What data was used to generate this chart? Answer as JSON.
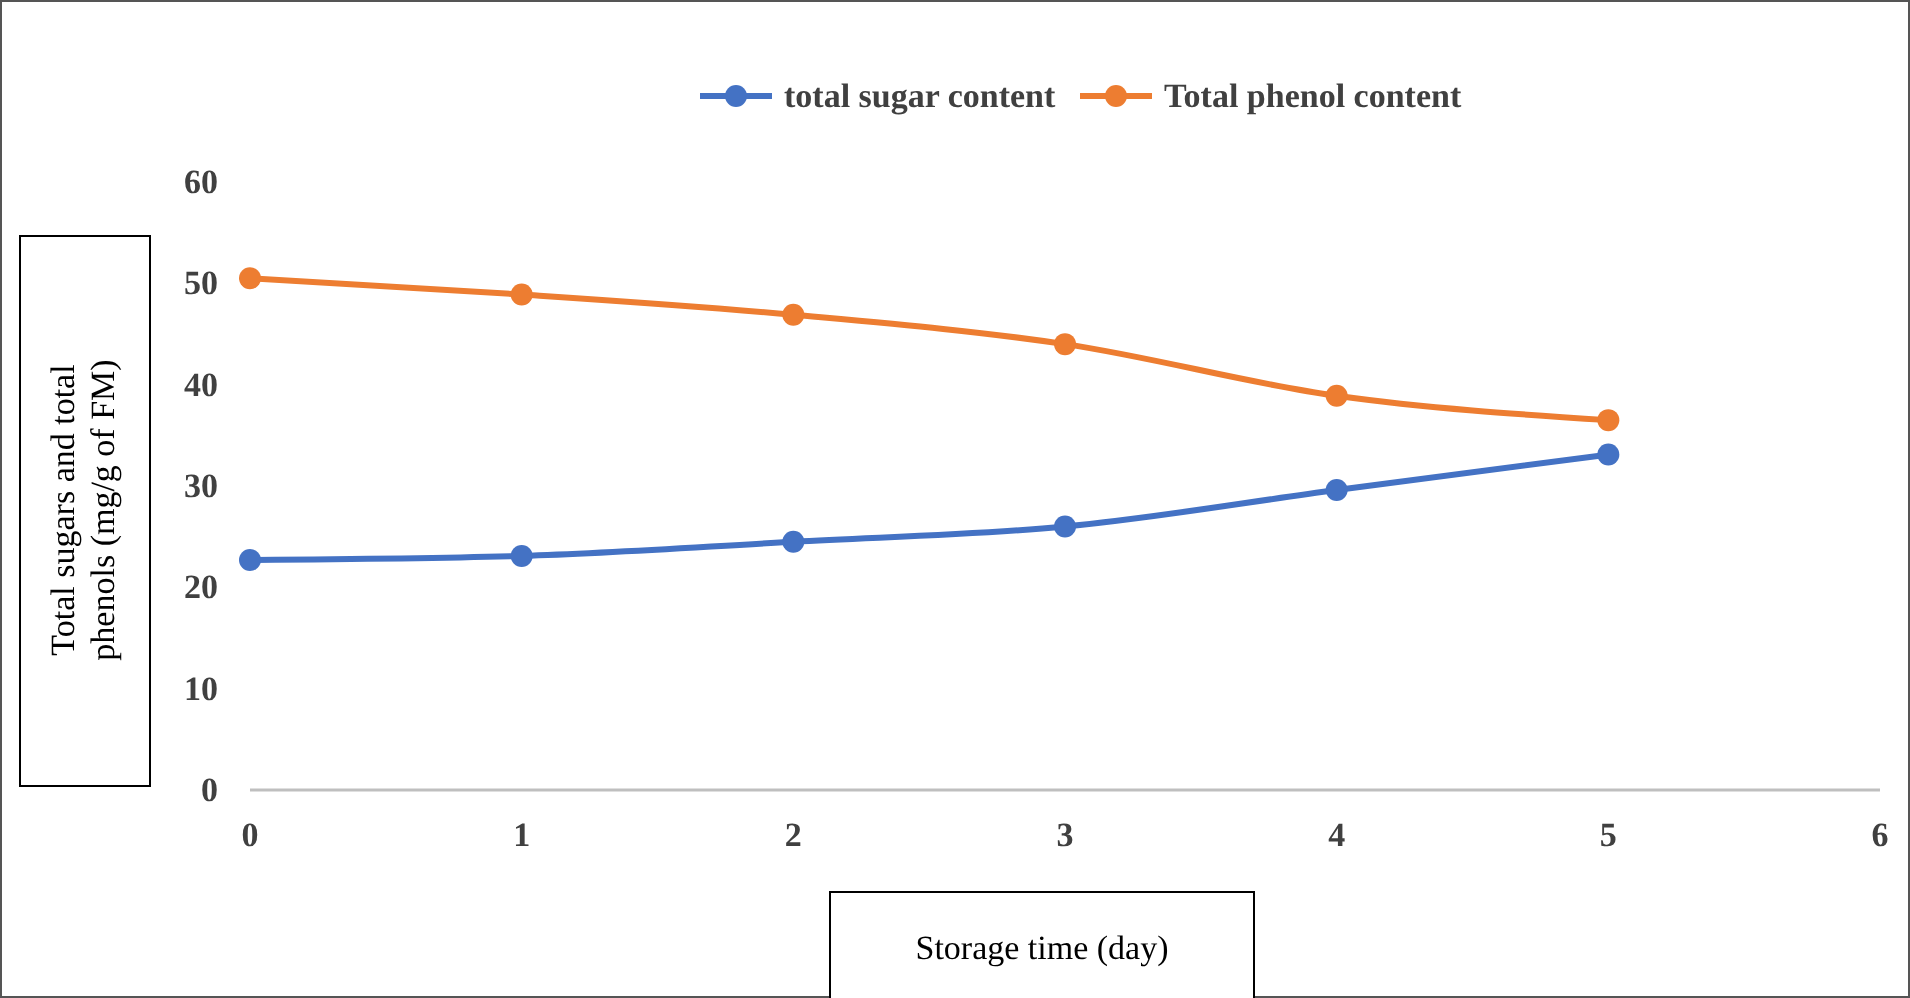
{
  "chart_data": {
    "type": "line",
    "xlabel": "Storage time (day)",
    "ylabel": "Total sugars and total phenols (mg/g of FM)",
    "x": [
      0,
      1,
      2,
      3,
      4,
      5
    ],
    "series": [
      {
        "name": "total sugar content",
        "color": "#4472c4",
        "values": [
          22.7,
          23.1,
          24.5,
          26.0,
          29.6,
          33.1
        ]
      },
      {
        "name": "Total phenol content",
        "color": "#ed7d31",
        "values": [
          50.5,
          48.9,
          46.9,
          44.0,
          38.9,
          36.5
        ]
      }
    ],
    "xlim": [
      0,
      6
    ],
    "xticks": [
      0,
      1,
      2,
      3,
      4,
      5,
      6
    ],
    "ylim": [
      0,
      60
    ],
    "yticks": [
      0,
      10,
      20,
      30,
      40,
      50,
      60
    ],
    "grid": false,
    "legend": "top",
    "marker": "circle",
    "line_style": "solid"
  }
}
